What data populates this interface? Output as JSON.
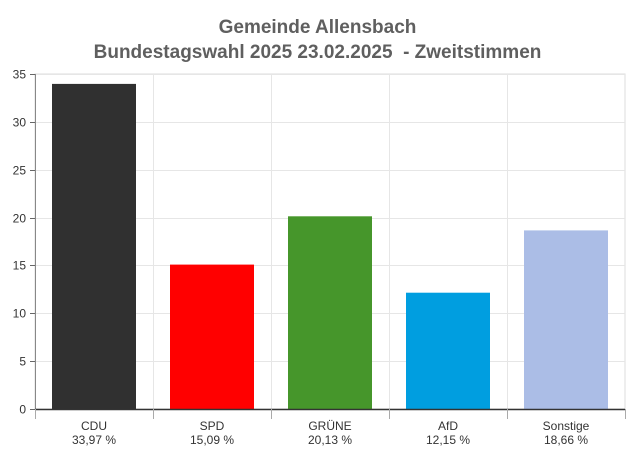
{
  "chart_data": {
    "type": "bar",
    "title": "Gemeinde Allensbach",
    "subtitle": "Bundestagswahl 2025 23.02.2025  - Zweitstimmen",
    "categories": [
      "CDU",
      "SPD",
      "GRÜNE",
      "AfD",
      "Sonstige"
    ],
    "values": [
      33.97,
      15.09,
      20.13,
      12.15,
      18.66
    ],
    "data_labels": [
      "33,97 %",
      "15,09 %",
      "20,13 %",
      "12,15 %",
      "18,66 %"
    ],
    "colors": [
      "#303030",
      "#ff0000",
      "#46962b",
      "#009ee0",
      "#abbde6"
    ],
    "ylim": [
      0,
      35
    ],
    "yticks": [
      0,
      5,
      10,
      15,
      20,
      25,
      30,
      35
    ],
    "grid": true,
    "legend": "none"
  }
}
